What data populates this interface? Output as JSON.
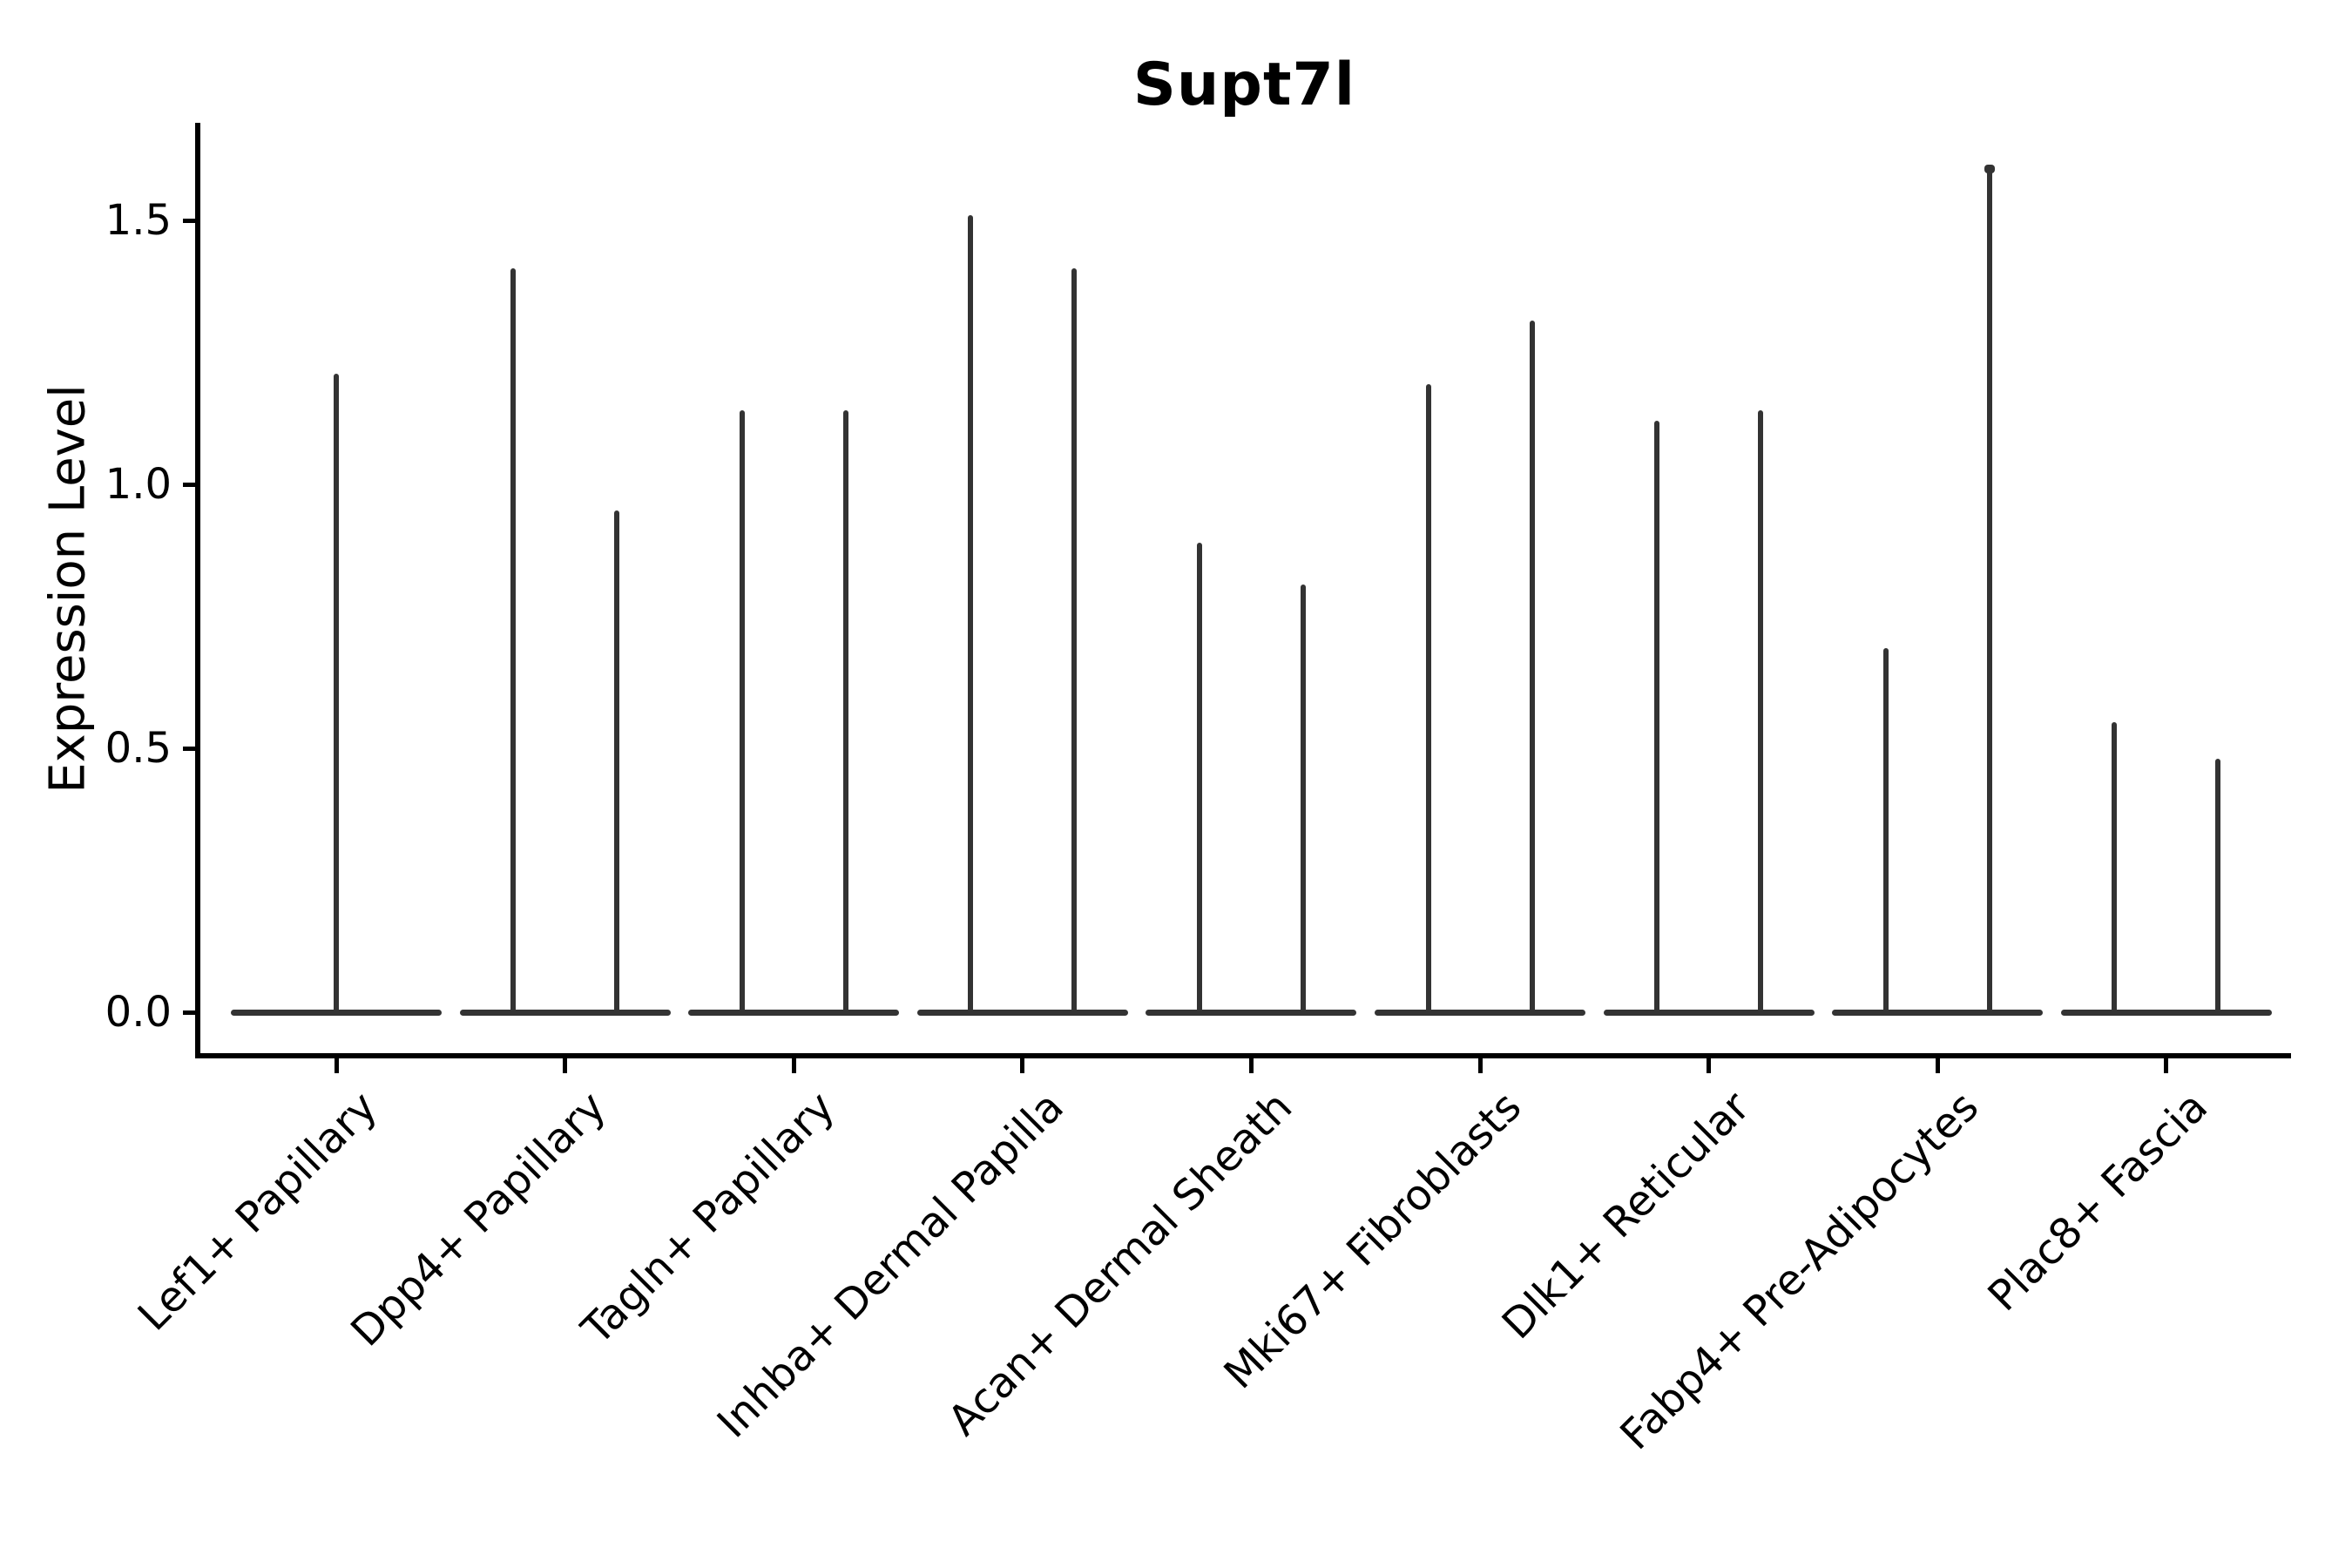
{
  "title": "Supt7l",
  "y_axis": {
    "label": "Expression Level",
    "tick_labels": [
      "0.0",
      "0.5",
      "1.0",
      "1.5"
    ],
    "tick_values": [
      0.0,
      0.5,
      1.0,
      1.5
    ]
  },
  "colors": {
    "violin": "#333333",
    "axis": "#000000",
    "background": "#ffffff",
    "text": "#000000"
  },
  "chart_data": {
    "type": "violin",
    "title": "Supt7l",
    "xlabel": "",
    "ylabel": "Expression Level",
    "ylim": [
      -0.08,
      1.69
    ],
    "yticks": [
      0.0,
      0.5,
      1.0,
      1.5
    ],
    "grid": false,
    "legend": "none",
    "description": "Zero-inflated expression violins: each category shows a wide flat base at expression 0 with one or two thin vertical spikes reaching the maximum expression value. Categories with two violins have spikes offset left/right of center; Lef1+ Papillary has a single centered violin.",
    "baseline_value": 0.0,
    "categories": [
      "Lef1+ Papillary",
      "Dpp4+ Papillary",
      "Tagln+ Papillary",
      "Inhba+ Dermal Papilla",
      "Acan+ Dermal Sheath",
      "Mki67+ Fibroblasts",
      "Dlk1+ Reticular",
      "Fabp4+ Pre-Adipocytes",
      "Plac8+ Fascia"
    ],
    "violin_max_values": [
      [
        1.21
      ],
      [
        1.41,
        0.95
      ],
      [
        1.14,
        1.14
      ],
      [
        1.51,
        1.41
      ],
      [
        0.89,
        0.81
      ],
      [
        1.19,
        1.31
      ],
      [
        1.12,
        1.14
      ],
      [
        0.69,
        1.6
      ],
      [
        0.55,
        0.48
      ]
    ],
    "tip_dot": {
      "category_index": 7,
      "violin_index": 1
    }
  }
}
